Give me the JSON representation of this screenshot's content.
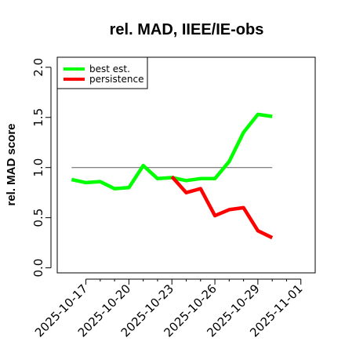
{
  "chart_data": {
    "type": "line",
    "title": "rel. MAD, IIEE/IE-obs",
    "xlabel": "",
    "ylabel": "rel. MAD score",
    "xlim": [
      "2025-10-15",
      "2025-11-02"
    ],
    "ylim": [
      -0.05,
      2.1
    ],
    "yticks": [
      0.0,
      0.5,
      1.0,
      1.5,
      2.0
    ],
    "ytick_labels": [
      "0.0",
      "0.5",
      "1.0",
      "1.5",
      "2.0"
    ],
    "xticks": [
      "2025-10-17",
      "2025-10-18",
      "2025-10-19",
      "2025-10-20",
      "2025-10-21",
      "2025-10-22",
      "2025-10-23",
      "2025-10-24",
      "2025-10-25",
      "2025-10-26",
      "2025-10-27",
      "2025-10-28",
      "2025-10-29",
      "2025-10-30",
      "2025-10-31",
      "2025-11-01"
    ],
    "xtick_labels": [
      "2025-10-17",
      "2025-10-20",
      "2025-10-23",
      "2025-10-26",
      "2025-10-29",
      "2025-11-01"
    ],
    "grid": false,
    "legend_position": "top-left",
    "reference_line": {
      "y": 1.0,
      "x": [
        "2025-10-16",
        "2025-10-30"
      ],
      "color": "#707070"
    },
    "series": [
      {
        "name": "best est.",
        "color": "#00ff00",
        "x": [
          "2025-10-16",
          "2025-10-17",
          "2025-10-18",
          "2025-10-19",
          "2025-10-20",
          "2025-10-21",
          "2025-10-22",
          "2025-10-23",
          "2025-10-24",
          "2025-10-25",
          "2025-10-26",
          "2025-10-27",
          "2025-10-28",
          "2025-10-29",
          "2025-10-30"
        ],
        "values": [
          0.88,
          0.85,
          0.86,
          0.79,
          0.8,
          1.02,
          0.89,
          0.9,
          0.87,
          0.89,
          0.89,
          1.06,
          1.35,
          1.53,
          1.51
        ]
      },
      {
        "name": "persistence",
        "color": "#ff0000",
        "x": [
          "2025-10-23",
          "2025-10-24",
          "2025-10-25",
          "2025-10-26",
          "2025-10-27",
          "2025-10-28",
          "2025-10-29",
          "2025-10-30"
        ],
        "values": [
          0.91,
          0.75,
          0.79,
          0.52,
          0.58,
          0.6,
          0.37,
          0.3
        ]
      }
    ]
  }
}
